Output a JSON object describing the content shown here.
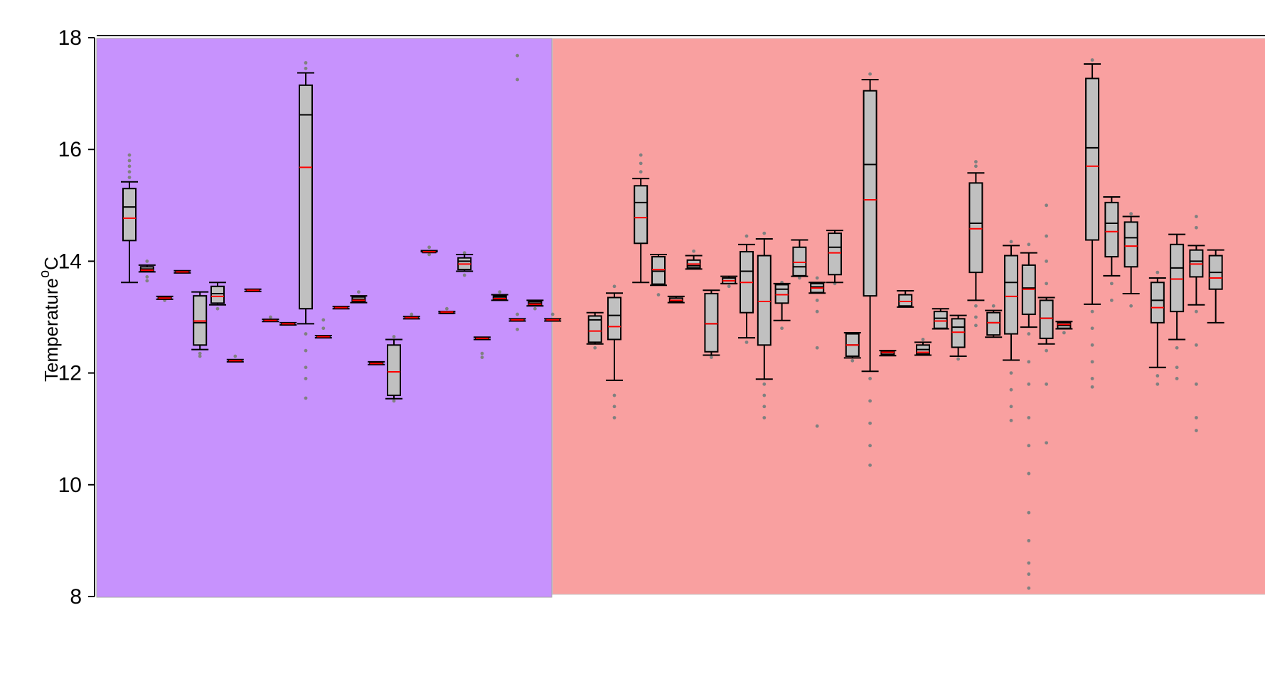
{
  "chart_data": {
    "type": "boxplot",
    "ylabel_main": "Temperature",
    "ylabel_super": "o",
    "ylabel_unit": "C",
    "ylim": [
      8,
      18
    ],
    "yticks": [
      "8",
      "10",
      "12",
      "14",
      "16",
      "18"
    ],
    "grid": false,
    "legend": "none",
    "colors": {
      "region1": "#c792fd",
      "region2": "#f9a0a0",
      "box_fill": "#c0c0c0",
      "box_stroke": "#000000",
      "mean_line": "#ff0000",
      "outlier": "#808080"
    },
    "regions": [
      {
        "name": "",
        "x_start": 0,
        "x_end": 29,
        "color": "#c792fd"
      },
      {
        "name": "",
        "x_start": 29,
        "x_end": 66,
        "color": "#f9a0a0"
      }
    ],
    "boxes": [
      {
        "x": 2,
        "lw": 13.62,
        "q1": 14.37,
        "med": 14.97,
        "q3": 15.3,
        "uw": 15.42,
        "mean": 14.77,
        "out": [
          15.9,
          15.8,
          15.7,
          15.6,
          15.5
        ]
      },
      {
        "x": 3,
        "lw": 13.81,
        "q1": 13.83,
        "med": 13.86,
        "q3": 13.9,
        "uw": 13.93,
        "mean": 13.84,
        "out": [
          13.72,
          13.65,
          14.0
        ]
      },
      {
        "x": 4,
        "lw": 13.32,
        "q1": 13.33,
        "med": 13.35,
        "q3": 13.36,
        "uw": 13.37,
        "mean": 13.34,
        "out": [
          13.3
        ]
      },
      {
        "x": 5,
        "lw": 13.79,
        "q1": 13.8,
        "med": 13.81,
        "q3": 13.82,
        "uw": 13.83,
        "mean": 13.81,
        "out": []
      },
      {
        "x": 6,
        "lw": 12.42,
        "q1": 12.5,
        "med": 12.9,
        "q3": 13.38,
        "uw": 13.45,
        "mean": 12.93,
        "out": [
          12.35,
          12.3
        ]
      },
      {
        "x": 7,
        "lw": 13.22,
        "q1": 13.25,
        "med": 13.42,
        "q3": 13.55,
        "uw": 13.62,
        "mean": 13.37,
        "out": [
          13.15,
          13.5
        ]
      },
      {
        "x": 8,
        "lw": 12.2,
        "q1": 12.21,
        "med": 12.22,
        "q3": 12.23,
        "uw": 12.24,
        "mean": 12.22,
        "out": [
          12.3
        ]
      },
      {
        "x": 9,
        "lw": 13.46,
        "q1": 13.47,
        "med": 13.48,
        "q3": 13.49,
        "uw": 13.5,
        "mean": 13.48,
        "out": []
      },
      {
        "x": 10,
        "lw": 12.92,
        "q1": 12.93,
        "med": 12.94,
        "q3": 12.95,
        "uw": 12.96,
        "mean": 12.94,
        "out": [
          13.0
        ]
      },
      {
        "x": 11,
        "lw": 12.86,
        "q1": 12.87,
        "med": 12.88,
        "q3": 12.89,
        "uw": 12.9,
        "mean": 12.88,
        "out": []
      },
      {
        "x": 12,
        "lw": 12.88,
        "q1": 13.15,
        "med": 16.62,
        "q3": 17.15,
        "uw": 17.37,
        "mean": 15.68,
        "out": [
          17.45,
          17.55,
          12.7,
          12.4,
          12.1,
          11.9,
          11.55
        ]
      },
      {
        "x": 13,
        "lw": 12.63,
        "q1": 12.64,
        "med": 12.65,
        "q3": 12.66,
        "uw": 12.67,
        "mean": 12.65,
        "out": [
          12.8,
          12.95
        ]
      },
      {
        "x": 14,
        "lw": 13.15,
        "q1": 13.16,
        "med": 13.17,
        "q3": 13.18,
        "uw": 13.19,
        "mean": 13.17,
        "out": []
      },
      {
        "x": 15,
        "lw": 13.26,
        "q1": 13.28,
        "med": 13.32,
        "q3": 13.36,
        "uw": 13.38,
        "mean": 13.3,
        "out": [
          13.45
        ]
      },
      {
        "x": 16,
        "lw": 12.15,
        "q1": 12.16,
        "med": 12.18,
        "q3": 12.19,
        "uw": 12.2,
        "mean": 12.17,
        "out": []
      },
      {
        "x": 17,
        "lw": 11.54,
        "q1": 11.6,
        "med": 12.02,
        "q3": 12.5,
        "uw": 12.6,
        "mean": 12.02,
        "out": [
          11.5,
          12.65
        ]
      },
      {
        "x": 18,
        "lw": 12.97,
        "q1": 12.98,
        "med": 12.99,
        "q3": 13.0,
        "uw": 13.01,
        "mean": 12.99,
        "out": [
          13.05
        ]
      },
      {
        "x": 19,
        "lw": 14.17,
        "q1": 14.17,
        "med": 14.18,
        "q3": 14.18,
        "uw": 14.19,
        "mean": 14.17,
        "out": [
          14.12,
          14.25
        ]
      },
      {
        "x": 20,
        "lw": 13.07,
        "q1": 13.08,
        "med": 13.09,
        "q3": 13.09,
        "uw": 13.1,
        "mean": 13.09,
        "out": [
          13.15
        ]
      },
      {
        "x": 21,
        "lw": 13.82,
        "q1": 13.85,
        "med": 14.0,
        "q3": 14.06,
        "uw": 14.12,
        "mean": 13.95,
        "out": [
          13.75,
          14.15
        ]
      },
      {
        "x": 22,
        "lw": 12.6,
        "q1": 12.61,
        "med": 12.62,
        "q3": 12.63,
        "uw": 12.64,
        "mean": 12.62,
        "out": [
          12.35,
          12.28
        ]
      },
      {
        "x": 23,
        "lw": 13.3,
        "q1": 13.32,
        "med": 13.36,
        "q3": 13.38,
        "uw": 13.4,
        "mean": 13.33,
        "out": [
          13.45
        ]
      },
      {
        "x": 24,
        "lw": 12.93,
        "q1": 12.94,
        "med": 12.95,
        "q3": 12.96,
        "uw": 12.97,
        "mean": 12.95,
        "out": [
          12.78,
          13.05,
          17.25,
          17.68
        ]
      },
      {
        "x": 25,
        "lw": 13.2,
        "q1": 13.22,
        "med": 13.25,
        "q3": 13.28,
        "uw": 13.3,
        "mean": 13.23,
        "out": [
          13.15
        ]
      },
      {
        "x": 26,
        "lw": 12.93,
        "q1": 12.94,
        "med": 12.95,
        "q3": 12.96,
        "uw": 12.97,
        "mean": 12.95,
        "out": [
          13.05
        ]
      },
      {
        "x": 28.4,
        "lw": 12.52,
        "q1": 12.55,
        "med": 12.95,
        "q3": 13.02,
        "uw": 13.08,
        "mean": 12.75,
        "out": [
          12.45
        ]
      },
      {
        "x": 29.5,
        "lw": 11.87,
        "q1": 12.6,
        "med": 13.03,
        "q3": 13.35,
        "uw": 13.43,
        "mean": 12.83,
        "out": [
          11.6,
          11.4,
          11.2,
          13.55
        ]
      },
      {
        "x": 31,
        "lw": 13.62,
        "q1": 14.32,
        "med": 15.05,
        "q3": 15.35,
        "uw": 15.48,
        "mean": 14.78,
        "out": [
          15.6,
          15.75,
          15.9
        ]
      },
      {
        "x": 32,
        "lw": 13.57,
        "q1": 13.59,
        "med": 13.82,
        "q3": 14.08,
        "uw": 14.12,
        "mean": 13.85,
        "out": [
          13.4
        ]
      },
      {
        "x": 33,
        "lw": 13.26,
        "q1": 13.27,
        "med": 13.29,
        "q3": 13.34,
        "uw": 13.37,
        "mean": 13.3,
        "out": []
      },
      {
        "x": 34,
        "lw": 13.86,
        "q1": 13.88,
        "med": 13.92,
        "q3": 14.02,
        "uw": 14.1,
        "mean": 13.95,
        "out": [
          14.18
        ]
      },
      {
        "x": 35,
        "lw": 12.32,
        "q1": 12.38,
        "med": 12.88,
        "q3": 13.42,
        "uw": 13.48,
        "mean": 12.88,
        "out": [
          12.28
        ]
      },
      {
        "x": 36,
        "lw": 13.6,
        "q1": 13.6,
        "med": 13.65,
        "q3": 13.7,
        "uw": 13.73,
        "mean": 13.65,
        "out": [
          13.55
        ]
      },
      {
        "x": 37,
        "lw": 12.63,
        "q1": 13.08,
        "med": 13.82,
        "q3": 14.17,
        "uw": 14.3,
        "mean": 13.62,
        "out": [
          14.45,
          12.55
        ]
      },
      {
        "x": 38,
        "lw": 11.89,
        "q1": 12.5,
        "med": 13.28,
        "q3": 14.1,
        "uw": 14.4,
        "mean": 13.28,
        "out": [
          11.8,
          11.6,
          11.4,
          11.2,
          14.5
        ]
      },
      {
        "x": 39,
        "lw": 12.94,
        "q1": 13.25,
        "med": 13.5,
        "q3": 13.58,
        "uw": 13.6,
        "mean": 13.4,
        "out": [
          12.8,
          13.62
        ]
      },
      {
        "x": 40,
        "lw": 13.73,
        "q1": 13.74,
        "med": 13.9,
        "q3": 14.25,
        "uw": 14.38,
        "mean": 13.98,
        "out": [
          13.7
        ]
      },
      {
        "x": 41,
        "lw": 13.43,
        "q1": 13.44,
        "med": 13.54,
        "q3": 13.6,
        "uw": 13.62,
        "mean": 13.52,
        "out": [
          13.3,
          13.1,
          12.45,
          11.05,
          13.7
        ]
      },
      {
        "x": 42,
        "lw": 13.62,
        "q1": 13.76,
        "med": 14.25,
        "q3": 14.5,
        "uw": 14.55,
        "mean": 14.15,
        "out": [
          13.6
        ]
      },
      {
        "x": 43,
        "lw": 12.27,
        "q1": 12.3,
        "med": 12.5,
        "q3": 12.7,
        "uw": 12.72,
        "mean": 12.5,
        "out": [
          12.22
        ]
      },
      {
        "x": 44,
        "lw": 12.03,
        "q1": 13.38,
        "med": 15.73,
        "q3": 17.05,
        "uw": 17.25,
        "mean": 15.1,
        "out": [
          17.35,
          11.9,
          11.5,
          11.1,
          10.7,
          10.35
        ]
      },
      {
        "x": 45,
        "lw": 12.31,
        "q1": 12.33,
        "med": 12.36,
        "q3": 12.38,
        "uw": 12.4,
        "mean": 12.37,
        "out": []
      },
      {
        "x": 46,
        "lw": 13.18,
        "q1": 13.2,
        "med": 13.28,
        "q3": 13.4,
        "uw": 13.47,
        "mean": 13.28,
        "out": []
      },
      {
        "x": 47,
        "lw": 12.32,
        "q1": 12.34,
        "med": 12.42,
        "q3": 12.5,
        "uw": 12.55,
        "mean": 12.37,
        "out": [
          12.6
        ]
      },
      {
        "x": 48,
        "lw": 12.79,
        "q1": 12.8,
        "med": 12.98,
        "q3": 13.1,
        "uw": 13.15,
        "mean": 12.93,
        "out": []
      },
      {
        "x": 49,
        "lw": 12.3,
        "q1": 12.46,
        "med": 12.82,
        "q3": 12.97,
        "uw": 13.03,
        "mean": 12.73,
        "out": [
          12.25
        ]
      },
      {
        "x": 50,
        "lw": 13.3,
        "q1": 13.8,
        "med": 14.68,
        "q3": 15.4,
        "uw": 15.58,
        "mean": 14.58,
        "out": [
          15.7,
          15.78,
          13.2,
          13.0,
          12.85
        ]
      },
      {
        "x": 51,
        "lw": 12.64,
        "q1": 12.68,
        "med": 12.9,
        "q3": 13.08,
        "uw": 13.12,
        "mean": 12.9,
        "out": [
          13.2
        ]
      },
      {
        "x": 52,
        "lw": 12.23,
        "q1": 12.7,
        "med": 13.62,
        "q3": 14.1,
        "uw": 14.28,
        "mean": 13.37,
        "out": [
          12.0,
          11.7,
          11.4,
          11.15,
          14.35
        ]
      },
      {
        "x": 53,
        "lw": 12.82,
        "q1": 13.05,
        "med": 13.52,
        "q3": 13.93,
        "uw": 14.15,
        "mean": 13.5,
        "out": [
          12.7,
          12.2,
          11.8,
          11.2,
          10.7,
          10.2,
          9.5,
          9.0,
          8.6,
          8.4,
          8.15,
          14.3
        ]
      },
      {
        "x": 54,
        "lw": 12.52,
        "q1": 12.62,
        "med": 12.98,
        "q3": 13.3,
        "uw": 13.35,
        "mean": 12.98,
        "out": [
          12.4,
          11.8,
          10.75,
          13.6,
          14.0,
          14.45,
          15.0
        ]
      },
      {
        "x": 55,
        "lw": 12.79,
        "q1": 12.8,
        "med": 12.85,
        "q3": 12.9,
        "uw": 12.92,
        "mean": 12.87,
        "out": [
          12.72
        ]
      },
      {
        "x": 56.6,
        "lw": 13.23,
        "q1": 14.38,
        "med": 16.03,
        "q3": 17.27,
        "uw": 17.53,
        "mean": 15.7,
        "out": [
          17.6,
          13.1,
          12.8,
          12.5,
          12.2,
          11.9,
          11.75
        ]
      },
      {
        "x": 57.7,
        "lw": 13.74,
        "q1": 14.08,
        "med": 14.68,
        "q3": 15.05,
        "uw": 15.15,
        "mean": 14.53,
        "out": [
          13.6,
          13.3
        ]
      },
      {
        "x": 58.8,
        "lw": 13.42,
        "q1": 13.9,
        "med": 14.42,
        "q3": 14.7,
        "uw": 14.8,
        "mean": 14.27,
        "out": [
          13.2,
          14.85
        ]
      },
      {
        "x": 60.3,
        "lw": 12.1,
        "q1": 12.9,
        "med": 13.3,
        "q3": 13.62,
        "uw": 13.7,
        "mean": 13.17,
        "out": [
          11.95,
          11.8,
          13.8
        ]
      },
      {
        "x": 61.4,
        "lw": 12.6,
        "q1": 13.1,
        "med": 13.88,
        "q3": 14.3,
        "uw": 14.48,
        "mean": 13.68,
        "out": [
          12.45,
          12.1,
          11.9
        ]
      },
      {
        "x": 62.5,
        "lw": 13.22,
        "q1": 13.72,
        "med": 14.0,
        "q3": 14.2,
        "uw": 14.28,
        "mean": 13.95,
        "out": [
          13.1,
          12.5,
          11.8,
          11.2,
          10.97,
          14.6,
          14.8
        ]
      },
      {
        "x": 63.6,
        "lw": 12.9,
        "q1": 13.5,
        "med": 13.8,
        "q3": 14.1,
        "uw": 14.2,
        "mean": 13.7,
        "out": []
      }
    ]
  }
}
